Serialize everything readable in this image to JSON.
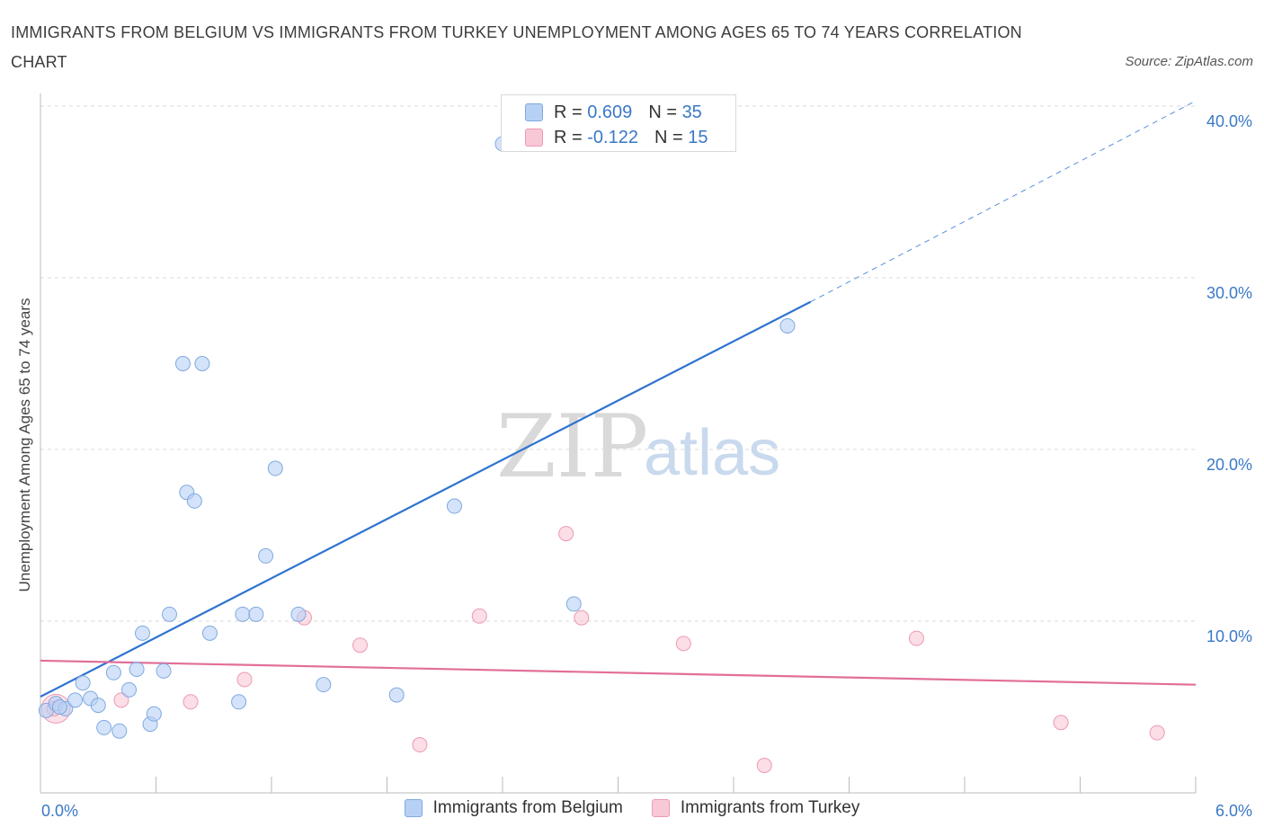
{
  "header": {
    "title": "IMMIGRANTS FROM BELGIUM VS IMMIGRANTS FROM TURKEY UNEMPLOYMENT AMONG AGES 65 TO 74 YEARS CORRELATION CHART",
    "source": "Source: ZipAtlas.com"
  },
  "watermark": {
    "zip": "ZIP",
    "atlas": "atlas"
  },
  "legend_top": {
    "rows": [
      {
        "r_label": "R =",
        "r_value": "0.609",
        "n_label": "N =",
        "n_value": "35"
      },
      {
        "r_label": "R =",
        "r_value": "-0.122",
        "n_label": "N =",
        "n_value": "15"
      }
    ]
  },
  "colors": {
    "belgium_fill": "#b7d1f5",
    "belgium_stroke": "#7fa9e0",
    "belgium_line": "#2f74d0",
    "turkey_fill": "#f9c8d6",
    "turkey_stroke": "#ec9ab3",
    "turkey_line": "#e26e99",
    "accent_text": "#3a78c8",
    "grid": "#d9d9d9"
  },
  "chart_data": {
    "type": "scatter",
    "title": "IMMIGRANTS FROM BELGIUM VS IMMIGRANTS FROM TURKEY UNEMPLOYMENT AMONG AGES 65 TO 74 YEARS CORRELATION CHART",
    "xlabel": "",
    "ylabel": "Unemployment Among Ages 65 to 74 years",
    "xlim": [
      0,
      6
    ],
    "ylim": [
      0,
      40
    ],
    "x_tick_labels": [
      "0.0%",
      "6.0%"
    ],
    "y_tick_labels": [
      "10.0%",
      "20.0%",
      "30.0%",
      "40.0%"
    ],
    "y_ticks": [
      10,
      20,
      30,
      40
    ],
    "grid": true,
    "legend_position": "bottom",
    "series": [
      {
        "name": "Immigrants from Belgium",
        "R": 0.609,
        "N": 35,
        "points": [
          [
            0.03,
            4.8
          ],
          [
            0.08,
            5.2
          ],
          [
            0.13,
            4.9
          ],
          [
            0.18,
            5.4
          ],
          [
            0.22,
            6.4
          ],
          [
            0.26,
            5.5
          ],
          [
            0.3,
            5.1
          ],
          [
            0.33,
            3.8
          ],
          [
            0.38,
            7.0
          ],
          [
            0.41,
            3.6
          ],
          [
            0.46,
            6.0
          ],
          [
            0.5,
            7.2
          ],
          [
            0.53,
            9.3
          ],
          [
            0.57,
            4.0
          ],
          [
            0.59,
            4.6
          ],
          [
            0.64,
            7.1
          ],
          [
            0.67,
            10.4
          ],
          [
            0.74,
            25.0
          ],
          [
            0.76,
            17.5
          ],
          [
            0.8,
            17.0
          ],
          [
            0.84,
            25.0
          ],
          [
            0.88,
            9.3
          ],
          [
            1.03,
            5.3
          ],
          [
            1.05,
            10.4
          ],
          [
            1.12,
            10.4
          ],
          [
            1.17,
            13.8
          ],
          [
            1.22,
            18.9
          ],
          [
            1.34,
            10.4
          ],
          [
            1.47,
            6.3
          ],
          [
            1.85,
            5.7
          ],
          [
            2.15,
            16.7
          ],
          [
            2.4,
            37.8
          ],
          [
            2.77,
            11.0
          ],
          [
            3.88,
            27.2
          ],
          [
            0.1,
            5.0
          ]
        ],
        "trend": {
          "x": [
            0,
            4.0
          ],
          "y": [
            5.6,
            28.6
          ],
          "dashed_to": [
            6.0,
            40.3
          ]
        }
      },
      {
        "name": "Immigrants from Turkey",
        "R": -0.122,
        "N": 15,
        "points": [
          [
            0.07,
            4.9
          ],
          [
            0.42,
            5.4
          ],
          [
            0.78,
            5.3
          ],
          [
            1.06,
            6.6
          ],
          [
            1.37,
            10.2
          ],
          [
            1.66,
            8.6
          ],
          [
            1.97,
            2.8
          ],
          [
            2.28,
            10.3
          ],
          [
            2.73,
            15.1
          ],
          [
            2.81,
            10.2
          ],
          [
            3.34,
            8.7
          ],
          [
            3.76,
            1.6
          ],
          [
            4.55,
            9.0
          ],
          [
            5.3,
            4.1
          ],
          [
            5.8,
            3.5
          ]
        ],
        "trend": {
          "x": [
            0,
            6.0
          ],
          "y": [
            7.7,
            6.3
          ]
        }
      }
    ]
  },
  "legend_bottom": {
    "items": [
      {
        "label": "Immigrants from Belgium"
      },
      {
        "label": "Immigrants from Turkey"
      }
    ]
  }
}
